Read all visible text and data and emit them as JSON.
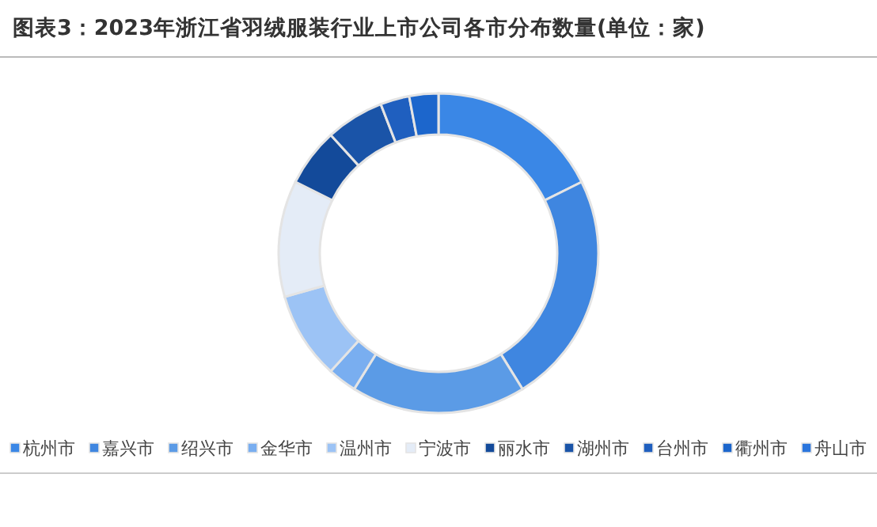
{
  "chart_data": {
    "type": "donut",
    "title": "图表3：2023年浙江省羽绒服装行业上市公司各市分布数量(单位：家)",
    "categories": [
      "杭州市",
      "嘉兴市",
      "绍兴市",
      "金华市",
      "温州市",
      "宁波市",
      "丽水市",
      "湖州市",
      "台州市",
      "衢州市",
      "舟山市"
    ],
    "values": [
      17.65,
      23.54,
      17.65,
      2.94,
      8.82,
      11.76,
      5.88,
      5.88,
      2.94,
      2.94,
      0
    ],
    "colors": [
      "#3a87e6",
      "#3f86e0",
      "#5b9be6",
      "#79aef0",
      "#9cc3f5",
      "#e4ecf7",
      "#134a9a",
      "#1a54a8",
      "#1f5fbf",
      "#1c66cc",
      "#2a75dd"
    ],
    "legend": "bottom"
  }
}
